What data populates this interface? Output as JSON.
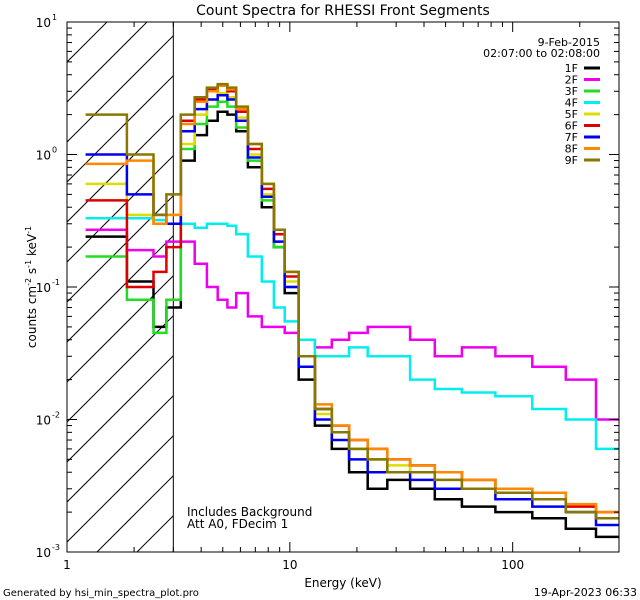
{
  "chart_data": {
    "type": "line",
    "title": "Count Spectra for RHESSI Front Segments",
    "xlabel": "Energy (keV)",
    "ylabel_parts": [
      "counts cm",
      "-2",
      " s",
      "-1",
      " keV",
      "-1"
    ],
    "x_scale": "log",
    "y_scale": "log",
    "xlim": [
      1,
      300
    ],
    "ylim": [
      0.001,
      10
    ],
    "x_ticks": [
      {
        "value": 1,
        "label": "1"
      },
      {
        "value": 10,
        "label": "10"
      },
      {
        "value": 100,
        "label": "100"
      }
    ],
    "y_ticks": [
      {
        "value": 0.001,
        "base": "10",
        "exp": "-3"
      },
      {
        "value": 0.01,
        "base": "10",
        "exp": "-2"
      },
      {
        "value": 0.1,
        "base": "10",
        "exp": "-1"
      },
      {
        "value": 1,
        "base": "10",
        "exp": "0"
      },
      {
        "value": 10,
        "base": "10",
        "exp": "1"
      }
    ],
    "hatched_region": {
      "x_start": 1,
      "x_end": 3
    },
    "date": "9-Feb-2015",
    "time_range": "02:07:00 to 02:08:00",
    "annotations": [
      "Includes Background",
      "Att A0, FDecim 1"
    ],
    "series": [
      {
        "name": "1F",
        "color": "#000000",
        "x": [
          1.5,
          2.3,
          2.6,
          3.0,
          3.5,
          4.0,
          4.5,
          5.0,
          5.5,
          6.0,
          7.0,
          8.0,
          9.0,
          10,
          12,
          14,
          17,
          20,
          25,
          30,
          40,
          50,
          70,
          100,
          150,
          200,
          280
        ],
        "values": [
          0.24,
          0.11,
          0.05,
          0.07,
          0.9,
          1.4,
          1.8,
          2.1,
          2.0,
          1.5,
          0.8,
          0.4,
          0.2,
          0.09,
          0.02,
          0.009,
          0.006,
          0.004,
          0.003,
          0.0035,
          0.003,
          0.0025,
          0.0022,
          0.002,
          0.0018,
          0.0015,
          0.0013
        ]
      },
      {
        "name": "2F",
        "color": "#ee00ee",
        "x": [
          1.5,
          2.3,
          2.6,
          3.0,
          3.5,
          4.0,
          4.5,
          5.0,
          5.5,
          6.0,
          7.0,
          8.0,
          9.0,
          10,
          12,
          14,
          17,
          20,
          25,
          30,
          40,
          50,
          70,
          100,
          150,
          200,
          280
        ],
        "values": [
          0.27,
          0.19,
          0.17,
          0.22,
          0.22,
          0.15,
          0.1,
          0.08,
          0.07,
          0.09,
          0.06,
          0.05,
          0.05,
          0.045,
          0.04,
          0.035,
          0.04,
          0.045,
          0.05,
          0.05,
          0.04,
          0.03,
          0.035,
          0.03,
          0.025,
          0.02,
          0.01
        ]
      },
      {
        "name": "3F",
        "color": "#22dd22",
        "x": [
          1.5,
          2.3,
          2.6,
          3.0,
          3.5,
          4.0,
          4.5,
          5.0,
          5.5,
          6.0,
          7.0,
          8.0,
          9.0,
          10,
          12,
          14,
          17,
          20,
          25,
          30,
          40,
          50,
          70,
          100,
          150,
          200,
          280
        ],
        "values": [
          0.17,
          0.08,
          0.045,
          0.08,
          1.1,
          1.7,
          2.3,
          2.5,
          2.3,
          1.6,
          0.9,
          0.45,
          0.2,
          0.1,
          0.03,
          0.012,
          0.008,
          0.006,
          0.005,
          0.004,
          0.0045,
          0.004,
          0.0035,
          0.003,
          0.0025,
          0.002,
          0.0018
        ]
      },
      {
        "name": "4F",
        "color": "#00eeee",
        "x": [
          1.5,
          2.3,
          2.6,
          3.0,
          3.5,
          4.0,
          4.5,
          5.0,
          5.5,
          6.0,
          7.0,
          8.0,
          9.0,
          10,
          12,
          14,
          17,
          20,
          25,
          30,
          40,
          50,
          70,
          100,
          150,
          200,
          280
        ],
        "values": [
          0.33,
          0.33,
          0.32,
          0.3,
          0.3,
          0.28,
          0.3,
          0.3,
          0.29,
          0.25,
          0.17,
          0.11,
          0.07,
          0.055,
          0.04,
          0.03,
          0.03,
          0.035,
          0.03,
          0.03,
          0.02,
          0.017,
          0.016,
          0.015,
          0.012,
          0.01,
          0.006
        ]
      },
      {
        "name": "5F",
        "color": "#dddd00",
        "x": [
          1.5,
          2.3,
          2.6,
          3.0,
          3.5,
          4.0,
          4.5,
          5.0,
          5.5,
          6.0,
          7.0,
          8.0,
          9.0,
          10,
          12,
          14,
          17,
          20,
          25,
          30,
          40,
          50,
          70,
          100,
          150,
          200,
          280
        ],
        "values": [
          0.6,
          0.35,
          0.3,
          0.35,
          1.2,
          2.0,
          2.6,
          2.9,
          2.7,
          1.9,
          1.0,
          0.5,
          0.22,
          0.11,
          0.025,
          0.011,
          0.008,
          0.006,
          0.005,
          0.0045,
          0.004,
          0.0035,
          0.003,
          0.003,
          0.0025,
          0.002,
          0.0018
        ]
      },
      {
        "name": "6F",
        "color": "#dd0000",
        "x": [
          1.5,
          2.3,
          2.6,
          3.0,
          3.5,
          4.0,
          4.5,
          5.0,
          5.5,
          6.0,
          7.0,
          8.0,
          9.0,
          10,
          12,
          14,
          17,
          20,
          25,
          30,
          40,
          50,
          70,
          100,
          150,
          200,
          280
        ],
        "values": [
          0.45,
          0.1,
          0.13,
          0.2,
          1.8,
          2.6,
          3.1,
          3.3,
          3.0,
          2.1,
          1.1,
          0.55,
          0.25,
          0.12,
          0.03,
          0.012,
          0.009,
          0.007,
          0.006,
          0.005,
          0.0045,
          0.004,
          0.0035,
          0.003,
          0.0028,
          0.0022,
          0.002
        ]
      },
      {
        "name": "7F",
        "color": "#0000ee",
        "x": [
          1.5,
          2.3,
          2.6,
          3.0,
          3.5,
          4.0,
          4.5,
          5.0,
          5.5,
          6.0,
          7.0,
          8.0,
          9.0,
          10,
          12,
          14,
          17,
          20,
          25,
          30,
          40,
          50,
          70,
          100,
          150,
          200,
          280
        ],
        "values": [
          1.0,
          0.5,
          0.35,
          0.3,
          1.5,
          2.2,
          2.6,
          2.8,
          2.6,
          1.8,
          0.95,
          0.48,
          0.22,
          0.1,
          0.025,
          0.01,
          0.007,
          0.005,
          0.004,
          0.004,
          0.0035,
          0.003,
          0.003,
          0.0025,
          0.0022,
          0.002,
          0.0016
        ]
      },
      {
        "name": "8F",
        "color": "#ff8800",
        "x": [
          1.5,
          2.3,
          2.6,
          3.0,
          3.5,
          4.0,
          4.5,
          5.0,
          5.5,
          6.0,
          7.0,
          8.0,
          9.0,
          10,
          12,
          14,
          17,
          20,
          25,
          30,
          40,
          50,
          70,
          100,
          150,
          200,
          280
        ],
        "values": [
          0.85,
          0.9,
          0.3,
          0.35,
          1.7,
          2.5,
          3.0,
          3.3,
          3.1,
          2.2,
          1.2,
          0.6,
          0.27,
          0.13,
          0.03,
          0.013,
          0.009,
          0.007,
          0.006,
          0.005,
          0.0045,
          0.004,
          0.0035,
          0.003,
          0.0028,
          0.0023,
          0.002
        ]
      },
      {
        "name": "9F",
        "color": "#887700",
        "x": [
          1.5,
          2.3,
          2.6,
          3.0,
          3.5,
          4.0,
          4.5,
          5.0,
          5.5,
          6.0,
          7.0,
          8.0,
          9.0,
          10,
          12,
          14,
          17,
          20,
          25,
          30,
          40,
          50,
          70,
          100,
          150,
          200,
          280
        ],
        "values": [
          2.0,
          1.0,
          0.35,
          0.5,
          2.0,
          2.7,
          3.2,
          3.4,
          3.2,
          2.3,
          1.2,
          0.6,
          0.27,
          0.13,
          0.03,
          0.012,
          0.008,
          0.006,
          0.005,
          0.004,
          0.004,
          0.0035,
          0.003,
          0.0028,
          0.0025,
          0.002,
          0.0018
        ]
      }
    ]
  },
  "footer": {
    "generated_by": "Generated by hsi_min_spectra_plot.pro",
    "timestamp": "19-Apr-2023 06:33"
  }
}
